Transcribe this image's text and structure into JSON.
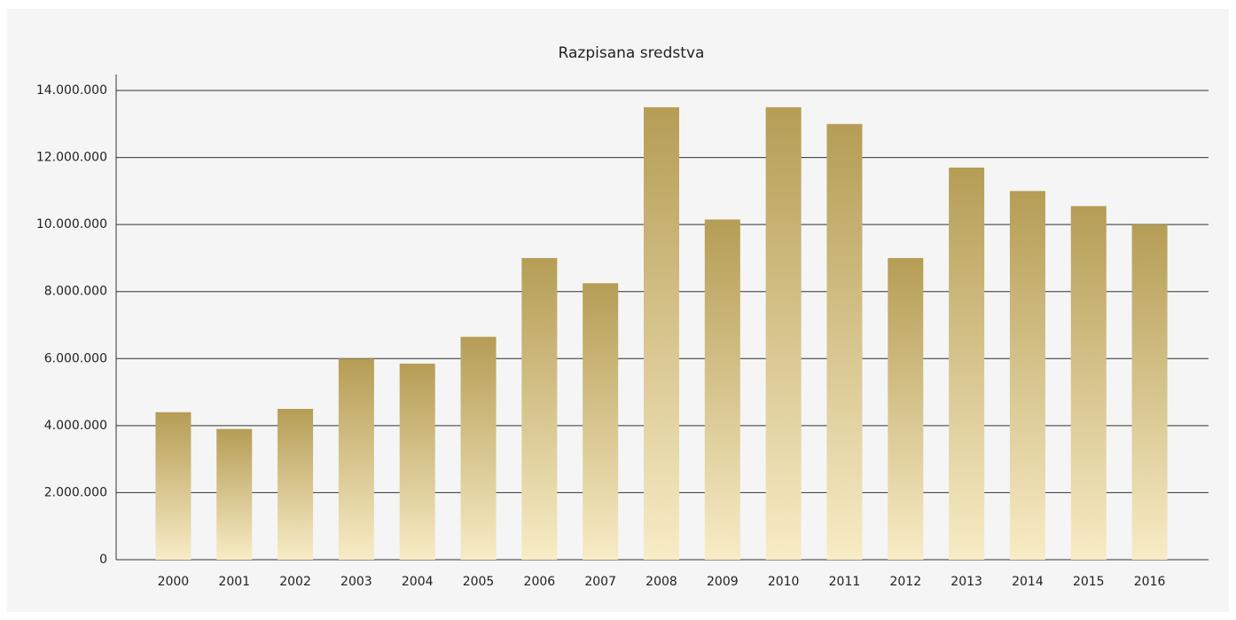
{
  "chart_data": {
    "type": "bar",
    "title": "Razpisana sredstva",
    "categories": [
      "2000",
      "2001",
      "2002",
      "2003",
      "2004",
      "2005",
      "2006",
      "2007",
      "2008",
      "2009",
      "2010",
      "2011",
      "2012",
      "2013",
      "2014",
      "2015",
      "2016"
    ],
    "values": [
      4400000,
      3900000,
      4500000,
      6000000,
      5850000,
      6650000,
      9000000,
      8250000,
      13500000,
      10150000,
      13500000,
      13000000,
      9000000,
      11700000,
      11000000,
      10550000,
      10000000
    ],
    "color": "#b59d55",
    "ylim": [
      0,
      14000000
    ],
    "yticks": [
      0,
      {
        "value": 2000000,
        "label": "2.000.000"
      },
      {
        "value": 4000000,
        "label": "4.000.000"
      },
      {
        "value": 6000000,
        "label": "6.000.000"
      },
      {
        "value": 8000000,
        "label": "8.000.000"
      },
      {
        "value": 10000000,
        "label": "10.000.000"
      },
      {
        "value": 12000000,
        "label": "12.000.000"
      },
      {
        "value": 14000000,
        "label": "14.000.000"
      }
    ],
    "grid": true
  }
}
